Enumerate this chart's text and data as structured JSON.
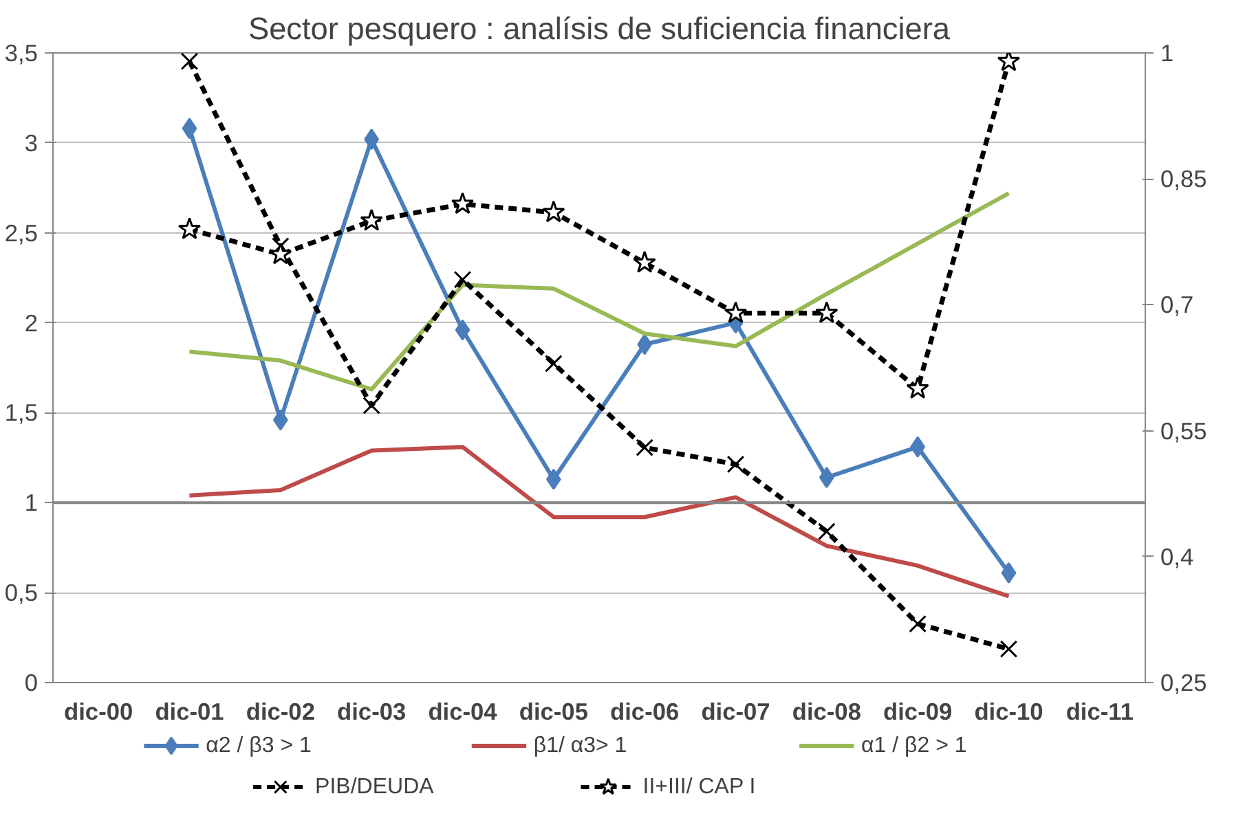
{
  "chart_data": {
    "type": "line",
    "title": "Sector pesquero : analísis de suficiencia financiera",
    "categories": [
      "dic-00",
      "dic-01",
      "dic-02",
      "dic-03",
      "dic-04",
      "dic-05",
      "dic-06",
      "dic-07",
      "dic-08",
      "dic-09",
      "dic-10",
      "dic-11"
    ],
    "series": [
      {
        "name": "α2 / β3  > 1",
        "color": "#4a7ebb",
        "marker": "diamond",
        "line_style": "solid",
        "values": [
          null,
          3.08,
          1.46,
          3.02,
          1.96,
          1.13,
          1.88,
          2.0,
          1.14,
          1.31,
          0.61,
          null
        ]
      },
      {
        "name": "β1/ α3> 1",
        "color": "#be4b48",
        "marker": "none",
        "line_style": "solid",
        "values": [
          null,
          1.04,
          1.07,
          1.29,
          1.31,
          0.92,
          0.92,
          1.03,
          0.76,
          0.65,
          0.48,
          null
        ]
      },
      {
        "name": "α1 / β2 > 1",
        "color": "#98b954",
        "marker": "none",
        "line_style": "solid",
        "values": [
          null,
          1.84,
          1.79,
          1.63,
          2.21,
          2.19,
          1.94,
          1.87,
          2.16,
          2.44,
          2.72,
          null
        ]
      },
      {
        "name": "PIB/DEUDA",
        "color": "#000000",
        "marker": "cross",
        "line_style": "dashed",
        "axis": "y2",
        "values": [
          null,
          0.99,
          0.77,
          0.58,
          0.73,
          0.63,
          0.53,
          0.51,
          0.43,
          0.32,
          0.29,
          null
        ]
      },
      {
        "name": "II+III/ CAP I",
        "color": "#000000",
        "marker": "star",
        "line_style": "dashed",
        "axis": "y2",
        "values": [
          null,
          0.79,
          0.76,
          0.8,
          0.82,
          0.81,
          0.75,
          0.69,
          0.69,
          0.6,
          0.99,
          null
        ]
      }
    ],
    "ylim": [
      0,
      3.5
    ],
    "yticks": [
      {
        "value": 0,
        "label": "0"
      },
      {
        "value": 0.5,
        "label": "0,5"
      },
      {
        "value": 1,
        "label": "1"
      },
      {
        "value": 1.5,
        "label": "1,5"
      },
      {
        "value": 2,
        "label": "2"
      },
      {
        "value": 2.5,
        "label": "2,5"
      },
      {
        "value": 3,
        "label": "3"
      },
      {
        "value": 3.5,
        "label": "3,5"
      }
    ],
    "y2lim": [
      0.25,
      1
    ],
    "y2ticks": [
      {
        "value": 0.25,
        "label": "0,25"
      },
      {
        "value": 0.4,
        "label": "0,4"
      },
      {
        "value": 0.55,
        "label": "0,55"
      },
      {
        "value": 0.7,
        "label": "0,7"
      },
      {
        "value": 0.85,
        "label": "0,85"
      },
      {
        "value": 1,
        "label": "1"
      }
    ],
    "ref_lines": [
      {
        "axis": "y",
        "value": 1,
        "color": "#868686"
      }
    ],
    "grid": "y",
    "legend": "bottom"
  }
}
